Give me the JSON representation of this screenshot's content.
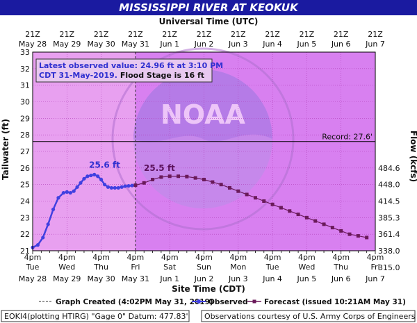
{
  "chart_data": {
    "type": "line",
    "title": "MISSISSIPPI RIVER AT KEOKUK",
    "top_axis_title": "Universal Time (UTC)",
    "bottom_axis_title": "Site Time (CDT)",
    "y_left_label": "Tailwater (ft)",
    "y_right_label": "Flow (kcfs)",
    "ylim": [
      21,
      33
    ],
    "y_ticks": [
      21,
      22,
      23,
      24,
      25,
      26,
      27,
      28,
      29,
      30,
      31,
      32,
      33
    ],
    "y_right_ticks": [
      {
        "stage": 21.0,
        "label": "338.0"
      },
      {
        "stage": 22.0,
        "label": "361.4"
      },
      {
        "stage": 23.0,
        "label": "385.3"
      },
      {
        "stage": 24.0,
        "label": "414.5"
      },
      {
        "stage": 25.0,
        "label": "448.0"
      },
      {
        "stage": 26.0,
        "label": "484.6"
      },
      {
        "stage": 20.0,
        "label": "315.0"
      }
    ],
    "xlim_days": [
      0,
      10
    ],
    "x_ticks": [
      {
        "day": 0,
        "top_time": "21Z",
        "top_date": "May 28",
        "time": "4pm",
        "weekday": "Tue",
        "date": "May 28"
      },
      {
        "day": 1,
        "top_time": "21Z",
        "top_date": "May 29",
        "time": "4pm",
        "weekday": "Wed",
        "date": "May 29"
      },
      {
        "day": 2,
        "top_time": "21Z",
        "top_date": "May 30",
        "time": "4pm",
        "weekday": "Thu",
        "date": "May 30"
      },
      {
        "day": 3,
        "top_time": "21Z",
        "top_date": "May 31",
        "time": "4pm",
        "weekday": "Fri",
        "date": "May 31"
      },
      {
        "day": 4,
        "top_time": "21Z",
        "top_date": "Jun 1",
        "time": "4pm",
        "weekday": "Sat",
        "date": "Jun 1"
      },
      {
        "day": 5,
        "top_time": "21Z",
        "top_date": "Jun 2",
        "time": "4pm",
        "weekday": "Sun",
        "date": "Jun 2"
      },
      {
        "day": 6,
        "top_time": "21Z",
        "top_date": "Jun 3",
        "time": "4pm",
        "weekday": "Mon",
        "date": "Jun 3"
      },
      {
        "day": 7,
        "top_time": "21Z",
        "top_date": "Jun 4",
        "time": "4pm",
        "weekday": "Tue",
        "date": "Jun 4"
      },
      {
        "day": 8,
        "top_time": "21Z",
        "top_date": "Jun 5",
        "time": "4pm",
        "weekday": "Wed",
        "date": "Jun 5"
      },
      {
        "day": 9,
        "top_time": "21Z",
        "top_date": "Jun 6",
        "time": "4pm",
        "weekday": "Thu",
        "date": "Jun 6"
      },
      {
        "day": 10,
        "top_time": "21Z",
        "top_date": "Jun 7",
        "time": "4pm",
        "weekday": "Fri",
        "date": "Jun 7"
      }
    ],
    "observed": {
      "name": "Observed",
      "color": "#4040e0",
      "x": [
        0.0,
        0.15,
        0.3,
        0.45,
        0.6,
        0.75,
        0.9,
        1.0,
        1.1,
        1.2,
        1.3,
        1.4,
        1.5,
        1.6,
        1.7,
        1.8,
        1.9,
        2.0,
        2.1,
        2.2,
        2.3,
        2.4,
        2.5,
        2.6,
        2.7,
        2.8,
        2.9,
        3.0
      ],
      "y": [
        21.2,
        21.35,
        21.8,
        22.6,
        23.5,
        24.2,
        24.5,
        24.55,
        24.5,
        24.6,
        24.85,
        25.1,
        25.35,
        25.5,
        25.55,
        25.6,
        25.5,
        25.3,
        25.0,
        24.85,
        24.8,
        24.8,
        24.8,
        24.85,
        24.9,
        24.92,
        24.94,
        24.96
      ]
    },
    "forecast": {
      "name": "Forecast",
      "color": "#6a1a5a",
      "x": [
        3.0,
        3.25,
        3.5,
        3.75,
        4.0,
        4.25,
        4.5,
        4.75,
        5.0,
        5.25,
        5.5,
        5.75,
        6.0,
        6.25,
        6.5,
        6.75,
        7.0,
        7.25,
        7.5,
        7.75,
        8.0,
        8.25,
        8.5,
        8.75,
        9.0,
        9.25,
        9.5,
        9.75
      ],
      "y": [
        24.96,
        25.1,
        25.3,
        25.45,
        25.5,
        25.5,
        25.48,
        25.4,
        25.3,
        25.15,
        25.0,
        24.8,
        24.6,
        24.4,
        24.2,
        24.0,
        23.8,
        23.6,
        23.4,
        23.2,
        23.0,
        22.8,
        22.6,
        22.4,
        22.2,
        22.0,
        21.9,
        21.8
      ]
    },
    "record": {
      "value": 27.6,
      "label": "Record: 27.6'"
    },
    "observed_peak_label": "25.6 ft",
    "forecast_peak_label": "25.5 ft",
    "observed_peak_x": 2.1,
    "forecast_peak_x": 3.7,
    "current_time_day": 3.0,
    "info_box": {
      "line1": "Latest observed value: 24.96 ft at 3:10 PM",
      "line2_date": "CDT 31-May-2019.",
      "line2_flood": " Flood Stage is 16 ft"
    },
    "watermark_text": "NOAA",
    "legend": {
      "graph_created": "Graph Created (4:02PM May 31, 2019)",
      "observed": "Observed",
      "forecast": "Forecast (issued 10:21AM May 31)"
    },
    "footer_left": "EOKI4(plotting HTIRG) \"Gage 0\" Datum: 477.83'",
    "footer_right": "Observations courtesy of U.S. Army Corps of Engineers",
    "colors": {
      "title_bg": "#1a1aa0",
      "title_text": "#ffffff",
      "past_area": "#e8a0f0",
      "future_area": "#d880f0",
      "page_bg": "#ffffff"
    }
  }
}
